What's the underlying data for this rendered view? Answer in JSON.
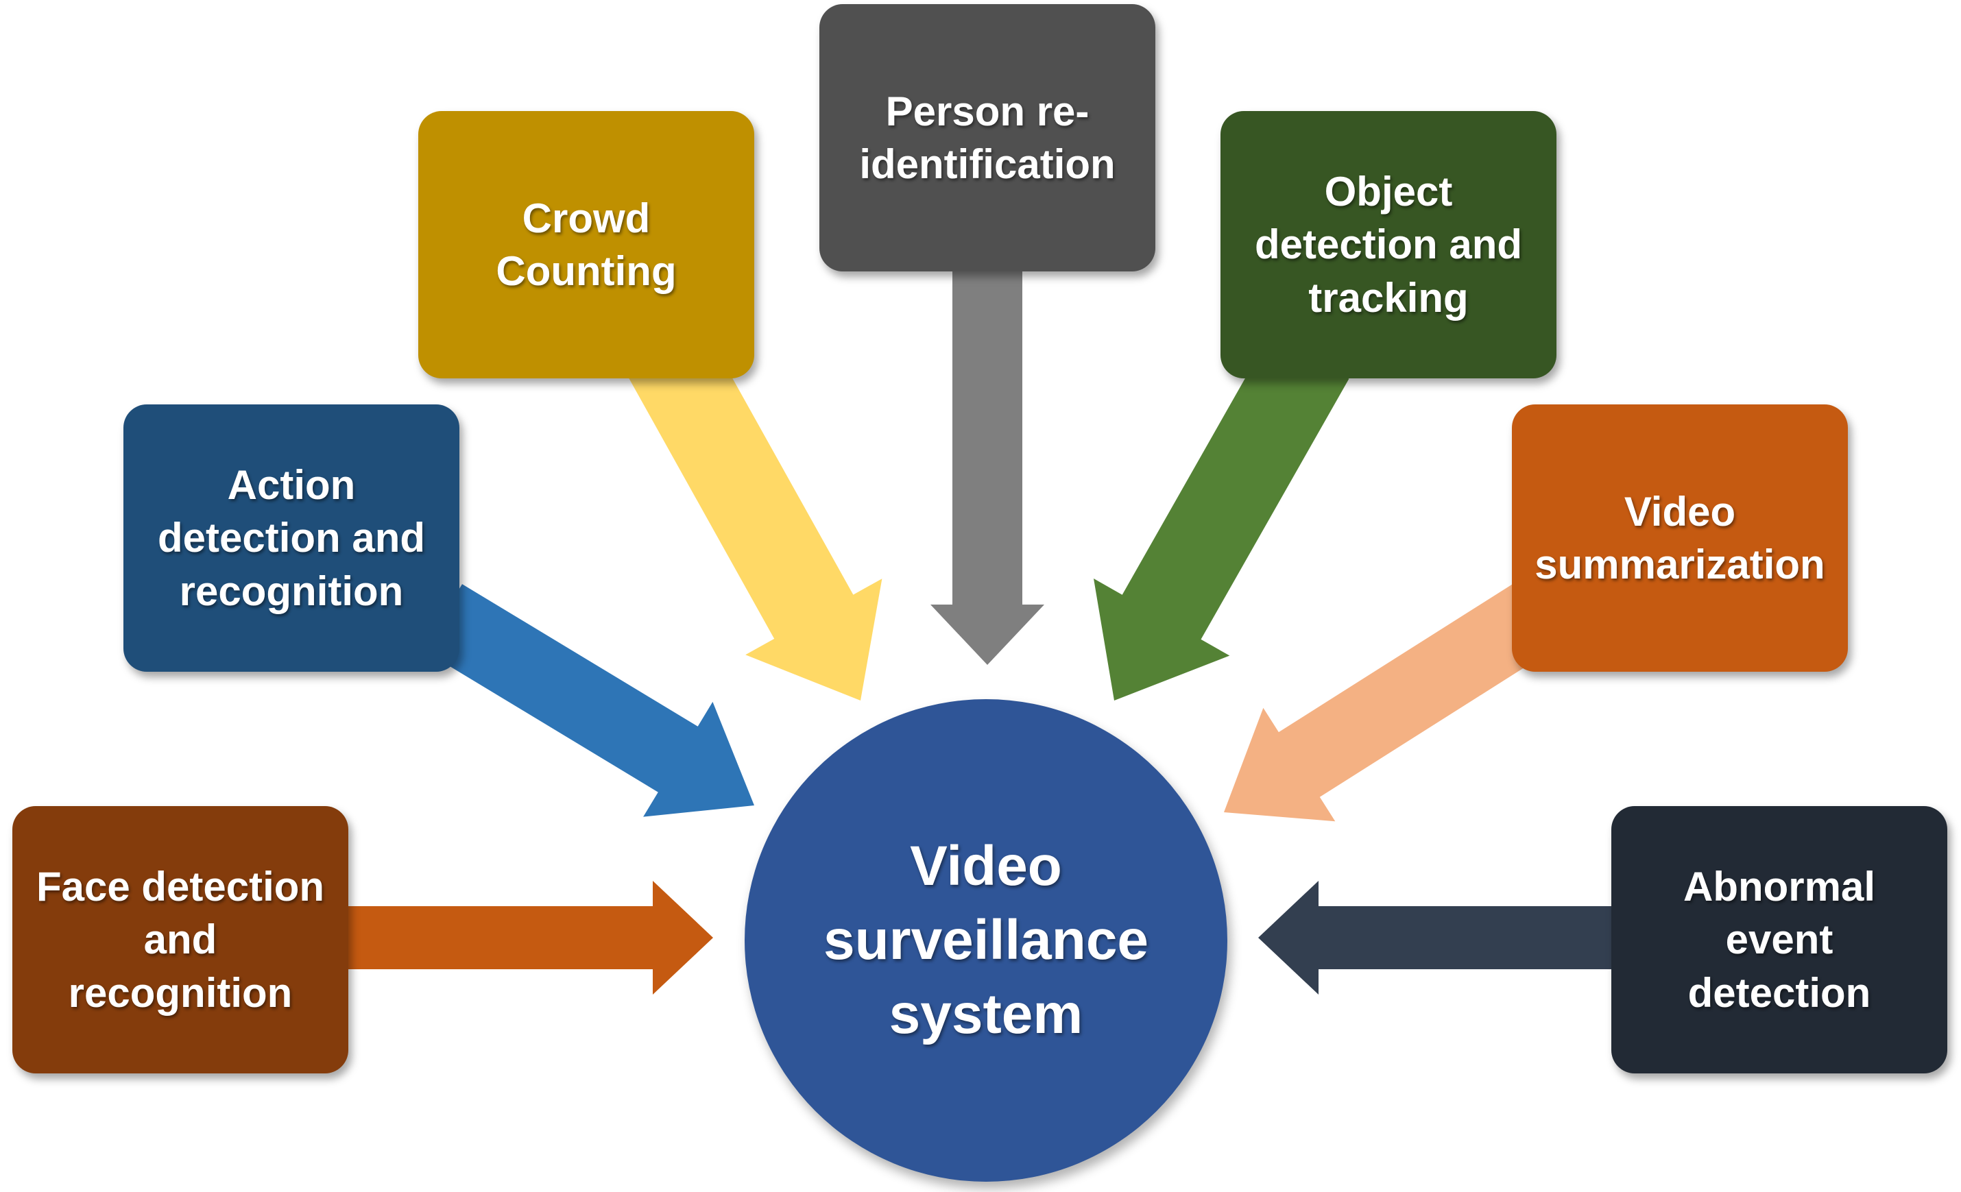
{
  "center": {
    "label": "Video\nsurveillance\nsystem",
    "color": "#2F5597"
  },
  "nodes": [
    {
      "id": "face",
      "label": "Face detection\nand\nrecognition",
      "color": "#843C0C",
      "arrow_color": "#C55A11"
    },
    {
      "id": "action",
      "label": "Action\ndetection and\nrecognition",
      "color": "#1F4E79",
      "arrow_color": "#2E75B6"
    },
    {
      "id": "crowd",
      "label": "Crowd\nCounting",
      "color": "#BF9000",
      "arrow_color": "#FFD966"
    },
    {
      "id": "person",
      "label": "Person re-\nidentification",
      "color": "#505050",
      "arrow_color": "#7F7F7F"
    },
    {
      "id": "object",
      "label": "Object\ndetection and\ntracking",
      "color": "#375623",
      "arrow_color": "#548235"
    },
    {
      "id": "summary",
      "label": "Video\nsummarization",
      "color": "#C55A11",
      "arrow_color": "#F4B183"
    },
    {
      "id": "abnormal",
      "label": "Abnormal\nevent\ndetection",
      "color": "#222A35",
      "arrow_color": "#333F50"
    }
  ]
}
